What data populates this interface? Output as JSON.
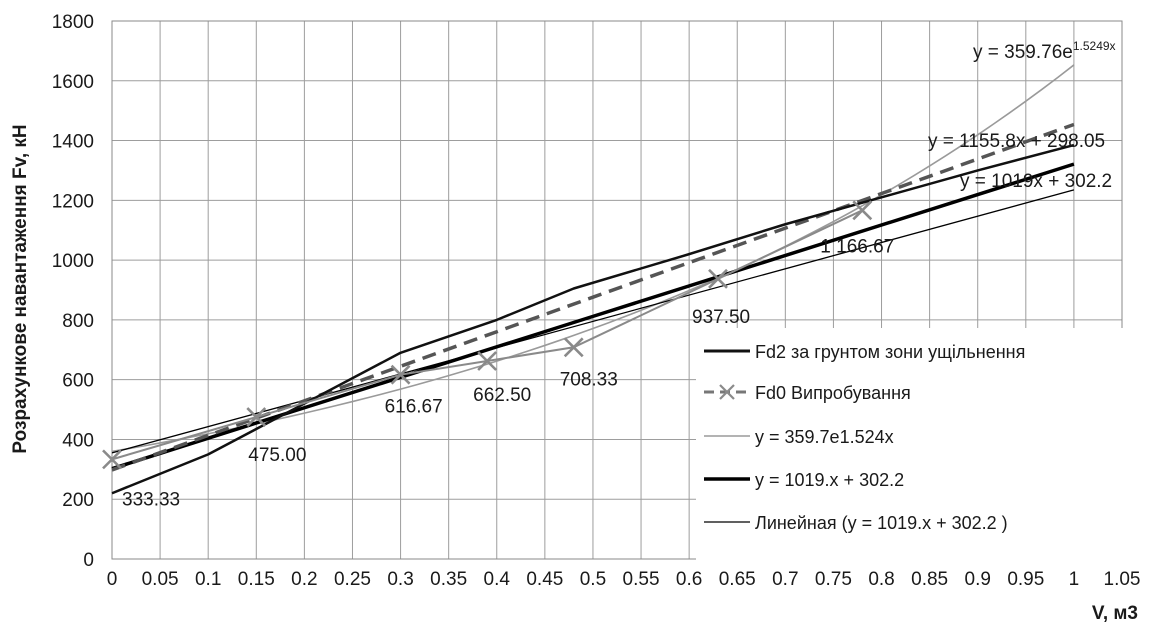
{
  "chart_data": {
    "type": "line",
    "xlabel": "V, м3",
    "ylabel": "Розрахункове навантаження Fv, кН",
    "xlim": [
      0,
      1.05
    ],
    "ylim": [
      0,
      1800
    ],
    "x_ticks": [
      0,
      0.05,
      0.1,
      0.15,
      0.2,
      0.25,
      0.3,
      0.35,
      0.4,
      0.45,
      0.5,
      0.55,
      0.6,
      0.65,
      0.7,
      0.75,
      0.8,
      0.85,
      0.9,
      0.95,
      1,
      1.05
    ],
    "y_ticks": [
      0,
      200,
      400,
      600,
      800,
      1000,
      1200,
      1400,
      1600,
      1800
    ],
    "grid": true,
    "legend_position": "right",
    "series": [
      {
        "name": "Fd2 за грунтом зони ущільнення",
        "style": "thick-solid",
        "color": "#111111",
        "x": [
          0,
          0.1,
          0.2,
          0.3,
          0.4,
          0.48,
          0.6,
          0.7,
          0.8,
          0.9,
          1.0
        ],
        "y": [
          220,
          350,
          520,
          690,
          800,
          905,
          1020,
          1120,
          1210,
          1300,
          1385
        ]
      },
      {
        "name": "Fd0 Випробування",
        "style": "dashed-markers",
        "color": "#777777",
        "x": [
          0,
          0.15,
          0.3,
          0.39,
          0.48,
          0.63,
          0.78
        ],
        "y": [
          333.33,
          475.0,
          616.67,
          662.5,
          708.33,
          937.5,
          1166.67
        ],
        "labels": [
          "333.33",
          "475.00",
          "616.67",
          "662.50",
          "708.33",
          "937.50",
          "1 166.67"
        ]
      },
      {
        "name": "y = 359.7e1.524x",
        "style": "thin-solid",
        "color": "#9a9a9a",
        "equation": "y = 359.76e1.5249x"
      },
      {
        "name": "y = 1019.x + 302.2",
        "style": "thick-solid",
        "color": "#000000",
        "equation": "y = 1019x + 302.2"
      },
      {
        "name": "Линейная (y = 1019.x + 302.2 )",
        "style": "thin-solid",
        "color": "#000000"
      },
      {
        "style": "thick-dashed",
        "color": "#555555",
        "equation": "y = 1155.8x + 298.05"
      }
    ],
    "equations": {
      "exp_base": "y = 359.76e",
      "exp_sup": "1.5249x",
      "linear_trend": "y = 1155.8x  + 298.05",
      "linear_1019": "y = 1019x  + 302.2"
    }
  }
}
